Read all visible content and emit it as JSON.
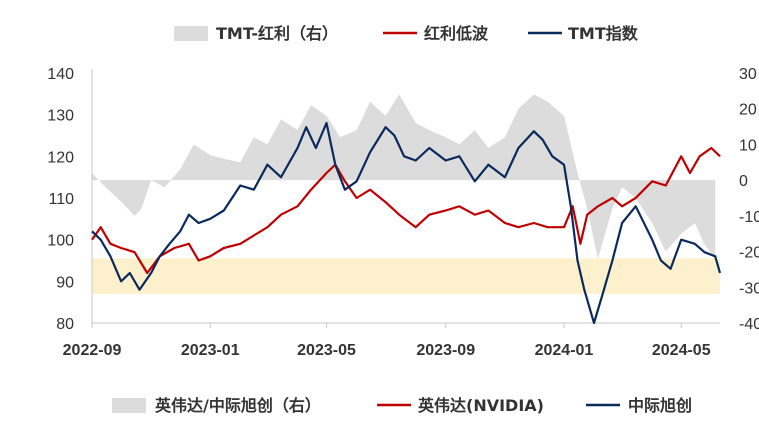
{
  "colors": {
    "area": "#dcdcdc",
    "band": "#fdf0cc",
    "series_red": "#c00000",
    "series_navy": "#0b2a5c",
    "axis": "#c8c8c8",
    "text": "#333333"
  },
  "legends": [
    {
      "items": [
        "TMT-红利（右）",
        "红利低波",
        "TMT指数"
      ]
    },
    {
      "items": [
        "英伟达/中际旭创（右）",
        "英伟达(NVIDIA)",
        "中际旭创"
      ]
    }
  ],
  "chart_data": {
    "type": "line",
    "x_axis": {
      "ticks": [
        "2022-09",
        "2023-01",
        "2023-05",
        "2023-09",
        "2024-01",
        "2024-05"
      ],
      "range": [
        "2022-09-01",
        "2024-06-10"
      ]
    },
    "y_left": {
      "ticks": [
        "140",
        "130",
        "120",
        "110",
        "100",
        "90",
        "80"
      ],
      "range": [
        80,
        140
      ]
    },
    "y_right": {
      "ticks": [
        "30",
        "20",
        "10",
        "0",
        "-10",
        "-20",
        "-30",
        "-40"
      ],
      "range": [
        -40,
        30
      ],
      "truncated": true
    },
    "band": {
      "axis": "left",
      "from": 87,
      "to": 95.5
    },
    "series": [
      {
        "name": "TMT-红利（右）",
        "kind": "area",
        "axis": "right",
        "points": [
          [
            "2022-09-01",
            2
          ],
          [
            "2022-09-15",
            -2
          ],
          [
            "2022-10-01",
            -6
          ],
          [
            "2022-10-15",
            -10
          ],
          [
            "2022-10-22",
            -8
          ],
          [
            "2022-11-01",
            0
          ],
          [
            "2022-11-15",
            -2
          ],
          [
            "2022-12-01",
            3
          ],
          [
            "2022-12-15",
            10
          ],
          [
            "2023-01-01",
            7
          ],
          [
            "2023-01-15",
            6
          ],
          [
            "2023-02-01",
            5
          ],
          [
            "2023-02-15",
            12
          ],
          [
            "2023-03-01",
            10
          ],
          [
            "2023-03-15",
            17
          ],
          [
            "2023-04-01",
            14
          ],
          [
            "2023-04-15",
            21
          ],
          [
            "2023-05-01",
            18
          ],
          [
            "2023-05-15",
            12
          ],
          [
            "2023-06-01",
            14
          ],
          [
            "2023-06-15",
            22
          ],
          [
            "2023-07-01",
            18
          ],
          [
            "2023-07-15",
            24
          ],
          [
            "2023-08-01",
            16
          ],
          [
            "2023-08-15",
            14
          ],
          [
            "2023-09-01",
            12
          ],
          [
            "2023-09-15",
            10
          ],
          [
            "2023-10-01",
            14
          ],
          [
            "2023-10-15",
            9
          ],
          [
            "2023-11-01",
            12
          ],
          [
            "2023-11-15",
            20
          ],
          [
            "2023-12-01",
            24
          ],
          [
            "2023-12-15",
            22
          ],
          [
            "2024-01-01",
            18
          ],
          [
            "2024-01-08",
            10
          ],
          [
            "2024-01-15",
            2
          ],
          [
            "2024-01-25",
            -8
          ],
          [
            "2024-02-05",
            -22
          ],
          [
            "2024-02-20",
            -8
          ],
          [
            "2024-03-01",
            -2
          ],
          [
            "2024-03-15",
            -5
          ],
          [
            "2024-04-01",
            -12
          ],
          [
            "2024-04-15",
            -20
          ],
          [
            "2024-05-01",
            -15
          ],
          [
            "2024-05-15",
            -12
          ],
          [
            "2024-05-25",
            -18
          ],
          [
            "2024-06-05",
            -22
          ]
        ]
      },
      {
        "name": "红利低波",
        "kind": "line",
        "axis": "left",
        "points": [
          [
            "2022-09-01",
            100
          ],
          [
            "2022-09-10",
            103
          ],
          [
            "2022-09-20",
            99
          ],
          [
            "2022-10-01",
            98
          ],
          [
            "2022-10-15",
            97
          ],
          [
            "2022-10-28",
            92
          ],
          [
            "2022-11-10",
            96
          ],
          [
            "2022-11-25",
            98
          ],
          [
            "2022-12-10",
            99
          ],
          [
            "2022-12-20",
            95
          ],
          [
            "2023-01-01",
            96
          ],
          [
            "2023-01-15",
            98
          ],
          [
            "2023-02-01",
            99
          ],
          [
            "2023-02-15",
            101
          ],
          [
            "2023-03-01",
            103
          ],
          [
            "2023-03-15",
            106
          ],
          [
            "2023-04-01",
            108
          ],
          [
            "2023-04-15",
            112
          ],
          [
            "2023-05-01",
            116
          ],
          [
            "2023-05-10",
            118
          ],
          [
            "2023-05-20",
            114
          ],
          [
            "2023-06-01",
            110
          ],
          [
            "2023-06-15",
            112
          ],
          [
            "2023-07-01",
            109
          ],
          [
            "2023-07-15",
            106
          ],
          [
            "2023-08-01",
            103
          ],
          [
            "2023-08-15",
            106
          ],
          [
            "2023-09-01",
            107
          ],
          [
            "2023-09-15",
            108
          ],
          [
            "2023-10-01",
            106
          ],
          [
            "2023-10-15",
            107
          ],
          [
            "2023-11-01",
            104
          ],
          [
            "2023-11-15",
            103
          ],
          [
            "2023-12-01",
            104
          ],
          [
            "2023-12-15",
            103
          ],
          [
            "2024-01-01",
            103
          ],
          [
            "2024-01-10",
            108
          ],
          [
            "2024-01-18",
            99
          ],
          [
            "2024-01-25",
            106
          ],
          [
            "2024-02-05",
            108
          ],
          [
            "2024-02-20",
            110
          ],
          [
            "2024-03-01",
            108
          ],
          [
            "2024-03-15",
            110
          ],
          [
            "2024-04-01",
            114
          ],
          [
            "2024-04-15",
            113
          ],
          [
            "2024-05-01",
            120
          ],
          [
            "2024-05-10",
            116
          ],
          [
            "2024-05-20",
            120
          ],
          [
            "2024-06-01",
            122
          ],
          [
            "2024-06-10",
            120
          ]
        ]
      },
      {
        "name": "TMT指数",
        "kind": "line",
        "axis": "left",
        "points": [
          [
            "2022-09-01",
            102
          ],
          [
            "2022-09-10",
            100
          ],
          [
            "2022-09-20",
            96
          ],
          [
            "2022-10-01",
            90
          ],
          [
            "2022-10-10",
            92
          ],
          [
            "2022-10-20",
            88
          ],
          [
            "2022-11-01",
            92
          ],
          [
            "2022-11-10",
            96
          ],
          [
            "2022-11-20",
            99
          ],
          [
            "2022-12-01",
            102
          ],
          [
            "2022-12-10",
            106
          ],
          [
            "2022-12-20",
            104
          ],
          [
            "2023-01-01",
            105
          ],
          [
            "2023-01-15",
            107
          ],
          [
            "2023-02-01",
            113
          ],
          [
            "2023-02-15",
            112
          ],
          [
            "2023-03-01",
            118
          ],
          [
            "2023-03-15",
            115
          ],
          [
            "2023-04-01",
            122
          ],
          [
            "2023-04-10",
            127
          ],
          [
            "2023-04-20",
            122
          ],
          [
            "2023-05-01",
            128
          ],
          [
            "2023-05-10",
            118
          ],
          [
            "2023-05-20",
            112
          ],
          [
            "2023-06-01",
            114
          ],
          [
            "2023-06-15",
            121
          ],
          [
            "2023-07-01",
            127
          ],
          [
            "2023-07-10",
            125
          ],
          [
            "2023-07-20",
            120
          ],
          [
            "2023-08-01",
            119
          ],
          [
            "2023-08-15",
            122
          ],
          [
            "2023-09-01",
            119
          ],
          [
            "2023-09-15",
            120
          ],
          [
            "2023-10-01",
            114
          ],
          [
            "2023-10-15",
            118
          ],
          [
            "2023-11-01",
            115
          ],
          [
            "2023-11-15",
            122
          ],
          [
            "2023-12-01",
            126
          ],
          [
            "2023-12-10",
            124
          ],
          [
            "2023-12-20",
            120
          ],
          [
            "2024-01-01",
            118
          ],
          [
            "2024-01-08",
            108
          ],
          [
            "2024-01-15",
            95
          ],
          [
            "2024-01-22",
            88
          ],
          [
            "2024-02-01",
            80
          ],
          [
            "2024-02-10",
            87
          ],
          [
            "2024-02-20",
            95
          ],
          [
            "2024-03-01",
            104
          ],
          [
            "2024-03-15",
            108
          ],
          [
            "2024-04-01",
            100
          ],
          [
            "2024-04-10",
            95
          ],
          [
            "2024-04-20",
            93
          ],
          [
            "2024-05-01",
            100
          ],
          [
            "2024-05-15",
            99
          ],
          [
            "2024-05-25",
            97
          ],
          [
            "2024-06-05",
            96
          ],
          [
            "2024-06-10",
            92
          ]
        ]
      }
    ],
    "grid": false,
    "legend_position": "top"
  }
}
